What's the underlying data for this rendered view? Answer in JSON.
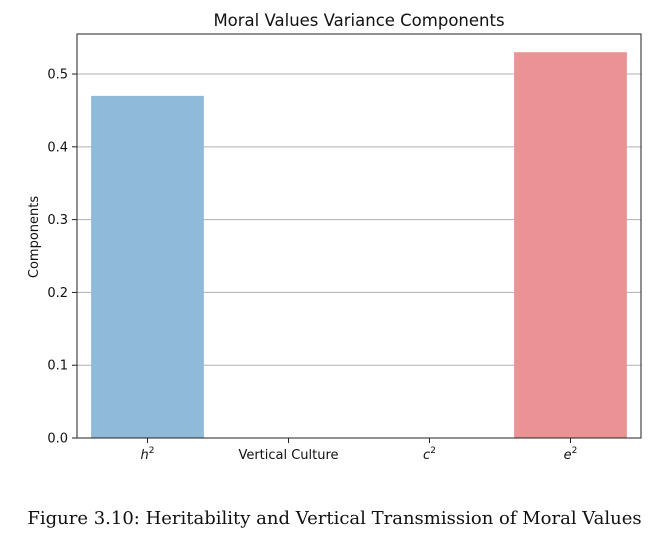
{
  "chart_data": {
    "type": "bar",
    "title": "Moral Values Variance Components",
    "xlabel": "",
    "ylabel": "Components",
    "categories": [
      {
        "base": "h",
        "sup": "2"
      },
      {
        "base": "Vertical Culture",
        "sup": ""
      },
      {
        "base": "c",
        "sup": "2"
      },
      {
        "base": "e",
        "sup": "2"
      }
    ],
    "values": [
      0.47,
      0.0,
      0.0,
      0.53
    ],
    "colors": [
      "#8fbbd9",
      "#8fbbd9",
      "#8fbbd9",
      "#eb9394"
    ],
    "ylim": [
      0,
      0.555
    ],
    "yticks": [
      "0.0",
      "0.1",
      "0.2",
      "0.3",
      "0.4",
      "0.5"
    ],
    "grid": "y"
  },
  "caption": "Figure 3.10: Heritability and Vertical Transmission of Moral Values"
}
